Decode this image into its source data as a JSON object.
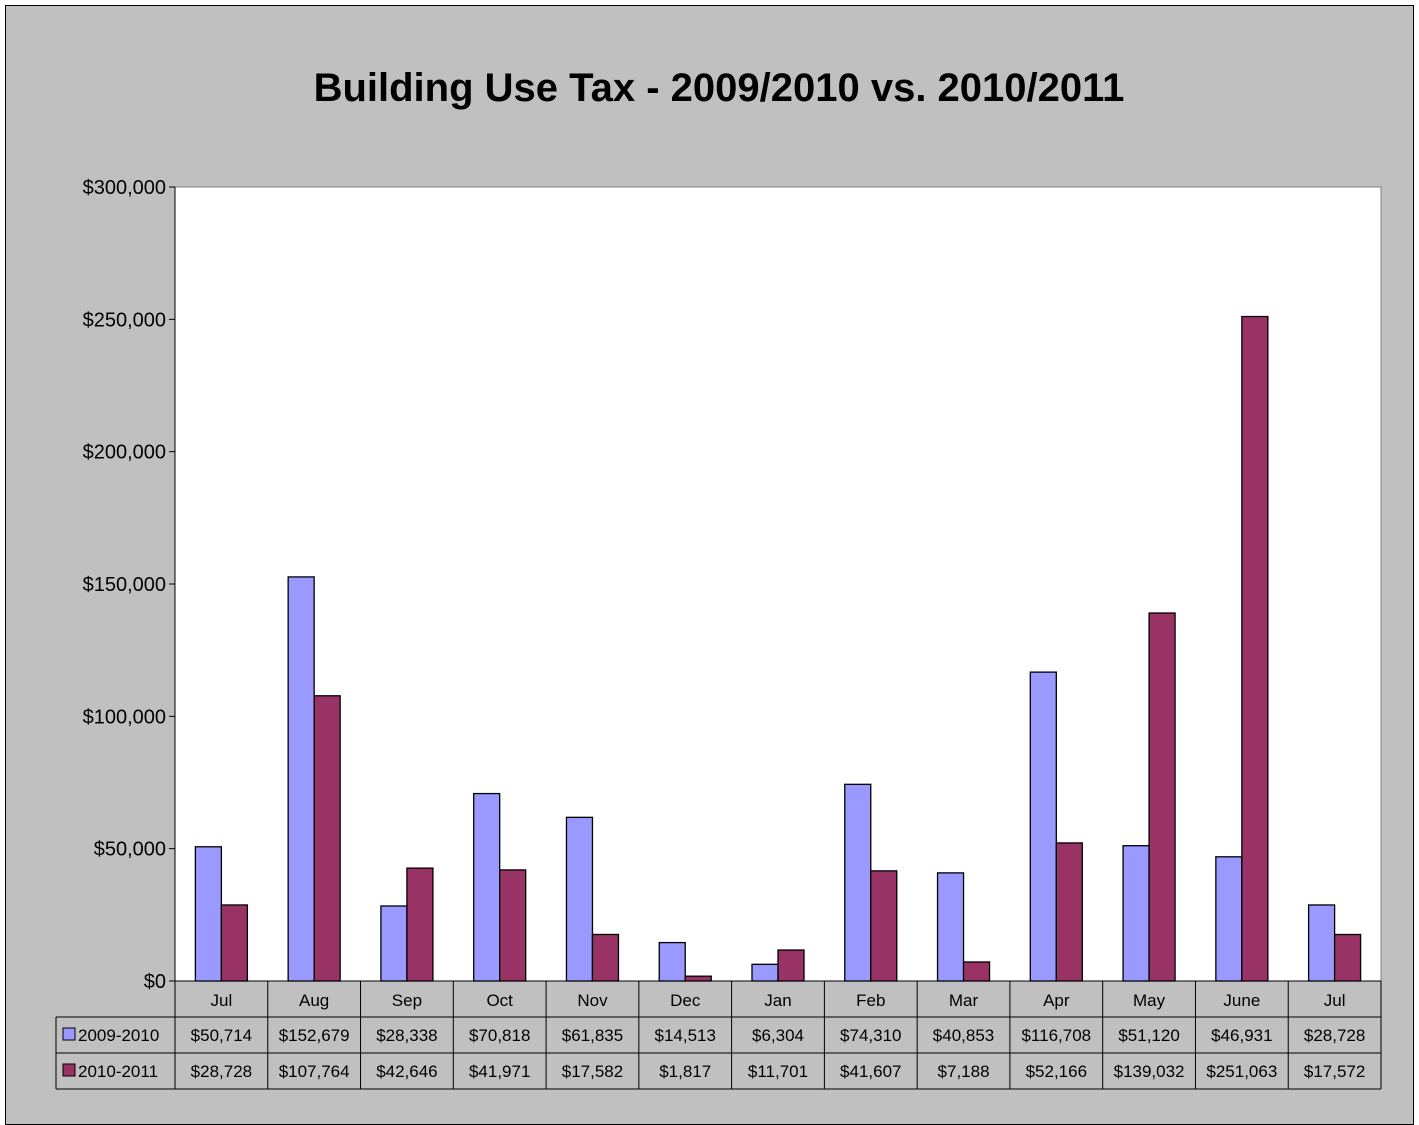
{
  "chart_data": {
    "type": "bar",
    "title": "Building Use Tax - 2009/2010 vs. 2010/2011",
    "xlabel": "",
    "ylabel": "",
    "ylim": [
      0,
      300000
    ],
    "yticks": [
      "$0",
      "$50,000",
      "$100,000",
      "$150,000",
      "$200,000",
      "$250,000",
      "$300,000"
    ],
    "ytick_values": [
      0,
      50000,
      100000,
      150000,
      200000,
      250000,
      300000
    ],
    "categories": [
      "Jul",
      "Aug",
      "Sep",
      "Oct",
      "Nov",
      "Dec",
      "Jan",
      "Feb",
      "Mar",
      "Apr",
      "May",
      "June",
      "Jul"
    ],
    "series": [
      {
        "name": "2009-2010",
        "color": "#9999ff",
        "values": [
          50714,
          152679,
          28338,
          70818,
          61835,
          14513,
          6304,
          74310,
          40853,
          116708,
          51120,
          46931,
          28728
        ],
        "labels": [
          "$50,714",
          "$152,679",
          "$28,338",
          "$70,818",
          "$61,835",
          "$14,513",
          "$6,304",
          "$74,310",
          "$40,853",
          "$116,708",
          "$51,120",
          "$46,931",
          "$28,728"
        ]
      },
      {
        "name": "2010-2011",
        "color": "#993366",
        "values": [
          28728,
          107764,
          42646,
          41971,
          17582,
          1817,
          11701,
          41607,
          7188,
          52166,
          139032,
          251063,
          17572
        ],
        "labels": [
          "$28,728",
          "$107,764",
          "$42,646",
          "$41,971",
          "$17,582",
          "$1,817",
          "$11,701",
          "$41,607",
          "$7,188",
          "$52,166",
          "$139,032",
          "$251,063",
          "$17,572"
        ]
      }
    ],
    "grid": false,
    "legend": "data table, left"
  }
}
